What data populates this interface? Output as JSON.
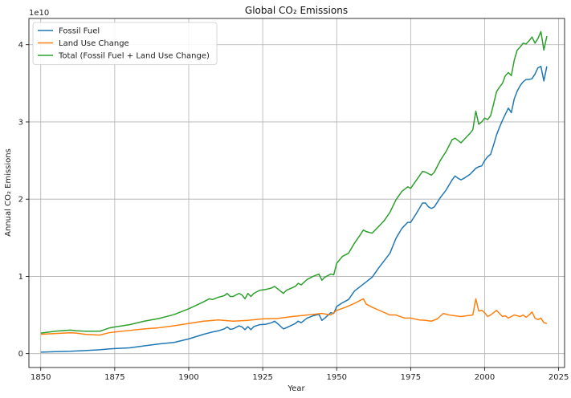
{
  "chart_data": {
    "type": "line",
    "title": "Global CO₂ Emissions",
    "xlabel": "Year",
    "ylabel": "Annual CO₂ Emissions",
    "y_offset_label": "1e10",
    "xlim": [
      1846,
      2027
    ],
    "ylim": [
      -1800000000.0,
      43400000000.0
    ],
    "grid": true,
    "legend_position": "upper-left",
    "x_ticks": [
      1850,
      1875,
      1900,
      1925,
      1950,
      1975,
      2000,
      2025
    ],
    "y_ticks": [
      0,
      1,
      2,
      3,
      4
    ],
    "y_tick_scale": 10000000000.0,
    "series": [
      {
        "name": "Fossil Fuel",
        "color": "#1f77b4",
        "x": [
          1850,
          1855,
          1860,
          1865,
          1870,
          1873,
          1875,
          1880,
          1885,
          1890,
          1895,
          1900,
          1905,
          1908,
          1910,
          1912,
          1913,
          1914,
          1915,
          1917,
          1918,
          1919,
          1920,
          1921,
          1922,
          1924,
          1926,
          1928,
          1929,
          1930,
          1932,
          1933,
          1936,
          1937,
          1938,
          1940,
          1942,
          1944,
          1945,
          1946,
          1948,
          1949,
          1950,
          1952,
          1954,
          1956,
          1958,
          1960,
          1962,
          1964,
          1966,
          1968,
          1970,
          1972,
          1974,
          1975,
          1977,
          1979,
          1980,
          1981,
          1982,
          1983,
          1985,
          1987,
          1989,
          1990,
          1991,
          1992,
          1993,
          1995,
          1996,
          1997,
          1998,
          1999,
          2000,
          2001,
          2002,
          2003,
          2004,
          2005,
          2006,
          2007,
          2008,
          2009,
          2010,
          2011,
          2012,
          2013,
          2014,
          2015,
          2016,
          2017,
          2018,
          2019,
          2020,
          2021
        ],
        "y": [
          190000000.0,
          250000000.0,
          300000000.0,
          400000000.0,
          500000000.0,
          600000000.0,
          650000000.0,
          750000000.0,
          1000000000.0,
          1250000000.0,
          1450000000.0,
          1900000000.0,
          2500000000.0,
          2800000000.0,
          2950000000.0,
          3200000000.0,
          3450000000.0,
          3150000000.0,
          3200000000.0,
          3600000000.0,
          3450000000.0,
          3100000000.0,
          3500000000.0,
          3100000000.0,
          3500000000.0,
          3750000000.0,
          3800000000.0,
          4000000000.0,
          4200000000.0,
          3900000000.0,
          3200000000.0,
          3350000000.0,
          3900000000.0,
          4200000000.0,
          4000000000.0,
          4600000000.0,
          4900000000.0,
          5100000000.0,
          4300000000.0,
          4600000000.0,
          5300000000.0,
          5200000000.0,
          6100000000.0,
          6600000000.0,
          7000000000.0,
          8100000000.0,
          8700000000.0,
          9300000000.0,
          9900000000.0,
          11000000000.0,
          12000000000.0,
          13000000000.0,
          14900000000.0,
          16200000000.0,
          17000000000.0,
          17000000000.0,
          18200000000.0,
          19500000000.0,
          19500000000.0,
          19000000000.0,
          18800000000.0,
          19000000000.0,
          20200000000.0,
          21200000000.0,
          22500000000.0,
          23000000000.0,
          22700000000.0,
          22500000000.0,
          22700000000.0,
          23200000000.0,
          23600000000.0,
          24000000000.0,
          24200000000.0,
          24300000000.0,
          25000000000.0,
          25500000000.0,
          25800000000.0,
          27000000000.0,
          28300000000.0,
          29300000000.0,
          30200000000.0,
          31000000000.0,
          31800000000.0,
          31200000000.0,
          33000000000.0,
          34000000000.0,
          34700000000.0,
          35200000000.0,
          35500000000.0,
          35500000000.0,
          35600000000.0,
          36200000000.0,
          37000000000.0,
          37200000000.0,
          35300000000.0,
          37200000000.0
        ]
      },
      {
        "name": "Land Use Change",
        "color": "#ff7f0e",
        "x": [
          1850,
          1855,
          1860,
          1862,
          1865,
          1870,
          1873,
          1875,
          1880,
          1885,
          1890,
          1895,
          1900,
          1905,
          1910,
          1915,
          1920,
          1925,
          1930,
          1935,
          1940,
          1945,
          1948,
          1950,
          1953,
          1956,
          1959,
          1960,
          1962,
          1965,
          1968,
          1970,
          1973,
          1975,
          1978,
          1980,
          1982,
          1984,
          1986,
          1988,
          1990,
          1992,
          1994,
          1996,
          1997,
          1998,
          1999,
          2000,
          2001,
          2002,
          2003,
          2004,
          2005,
          2006,
          2007,
          2008,
          2009,
          2010,
          2011,
          2012,
          2013,
          2014,
          2015,
          2016,
          2017,
          2018,
          2019,
          2020,
          2021
        ],
        "y": [
          2500000000.0,
          2600000000.0,
          2700000000.0,
          2650000000.0,
          2500000000.0,
          2400000000.0,
          2700000000.0,
          2800000000.0,
          3000000000.0,
          3200000000.0,
          3350000000.0,
          3600000000.0,
          3900000000.0,
          4200000000.0,
          4350000000.0,
          4200000000.0,
          4300000000.0,
          4500000000.0,
          4550000000.0,
          4800000000.0,
          5000000000.0,
          5200000000.0,
          5000000000.0,
          5600000000.0,
          6000000000.0,
          6500000000.0,
          7100000000.0,
          6400000000.0,
          6000000000.0,
          5500000000.0,
          5000000000.0,
          5000000000.0,
          4600000000.0,
          4600000000.0,
          4350000000.0,
          4300000000.0,
          4200000000.0,
          4500000000.0,
          5200000000.0,
          5000000000.0,
          4900000000.0,
          4800000000.0,
          4900000000.0,
          5000000000.0,
          7100000000.0,
          5500000000.0,
          5600000000.0,
          5300000000.0,
          4800000000.0,
          5000000000.0,
          5300000000.0,
          5600000000.0,
          5200000000.0,
          4800000000.0,
          4900000000.0,
          4600000000.0,
          4800000000.0,
          5000000000.0,
          4900000000.0,
          4800000000.0,
          5000000000.0,
          4700000000.0,
          5000000000.0,
          5400000000.0,
          4600000000.0,
          4400000000.0,
          4600000000.0,
          4000000000.0,
          3900000000.0
        ]
      },
      {
        "name": "Total (Fossil Fuel + Land Use Change)",
        "color": "#2ca02c",
        "x": [
          1850,
          1855,
          1860,
          1862,
          1865,
          1870,
          1873,
          1875,
          1880,
          1885,
          1890,
          1895,
          1900,
          1905,
          1907,
          1908,
          1910,
          1912,
          1913,
          1914,
          1915,
          1917,
          1918,
          1919,
          1920,
          1921,
          1922,
          1924,
          1926,
          1928,
          1929,
          1930,
          1932,
          1933,
          1936,
          1937,
          1938,
          1940,
          1942,
          1944,
          1945,
          1946,
          1948,
          1949,
          1950,
          1952,
          1954,
          1956,
          1958,
          1959,
          1960,
          1962,
          1964,
          1966,
          1968,
          1970,
          1972,
          1974,
          1975,
          1977,
          1979,
          1980,
          1981,
          1982,
          1983,
          1985,
          1987,
          1989,
          1990,
          1991,
          1992,
          1993,
          1995,
          1996,
          1997,
          1998,
          1999,
          2000,
          2001,
          2002,
          2003,
          2004,
          2005,
          2006,
          2007,
          2008,
          2009,
          2010,
          2011,
          2012,
          2013,
          2014,
          2015,
          2016,
          2017,
          2018,
          2019,
          2020,
          2021
        ],
        "y": [
          2650000000.0,
          2900000000.0,
          3050000000.0,
          2950000000.0,
          2900000000.0,
          2900000000.0,
          3300000000.0,
          3450000000.0,
          3750000000.0,
          4200000000.0,
          4550000000.0,
          5050000000.0,
          5800000000.0,
          6700000000.0,
          7100000000.0,
          7000000000.0,
          7300000000.0,
          7500000000.0,
          7800000000.0,
          7400000000.0,
          7400000000.0,
          7800000000.0,
          7600000000.0,
          7100000000.0,
          7800000000.0,
          7400000000.0,
          7800000000.0,
          8200000000.0,
          8300000000.0,
          8500000000.0,
          8700000000.0,
          8400000000.0,
          7800000000.0,
          8200000000.0,
          8700000000.0,
          9100000000.0,
          8900000000.0,
          9600000000.0,
          10000000000.0,
          10300000000.0,
          9500000000.0,
          9900000000.0,
          10300000000.0,
          10200000000.0,
          11700000000.0,
          12600000000.0,
          13000000000.0,
          14300000000.0,
          15400000000.0,
          16000000000.0,
          15800000000.0,
          15600000000.0,
          16400000000.0,
          17200000000.0,
          18300000000.0,
          19900000000.0,
          21000000000.0,
          21600000000.0,
          21400000000.0,
          22500000000.0,
          23600000000.0,
          23500000000.0,
          23300000000.0,
          23100000000.0,
          23500000000.0,
          25000000000.0,
          26200000000.0,
          27700000000.0,
          27900000000.0,
          27600000000.0,
          27300000000.0,
          27700000000.0,
          28500000000.0,
          29000000000.0,
          31400000000.0,
          29700000000.0,
          30000000000.0,
          30500000000.0,
          30300000000.0,
          30800000000.0,
          32300000000.0,
          33900000000.0,
          34500000000.0,
          35000000000.0,
          36000000000.0,
          36400000000.0,
          36000000000.0,
          38000000000.0,
          39300000000.0,
          39700000000.0,
          40200000000.0,
          40100000000.0,
          40500000000.0,
          41000000000.0,
          40200000000.0,
          40800000000.0,
          41700000000.0,
          39300000000.0,
          41100000000.0
        ]
      }
    ]
  }
}
